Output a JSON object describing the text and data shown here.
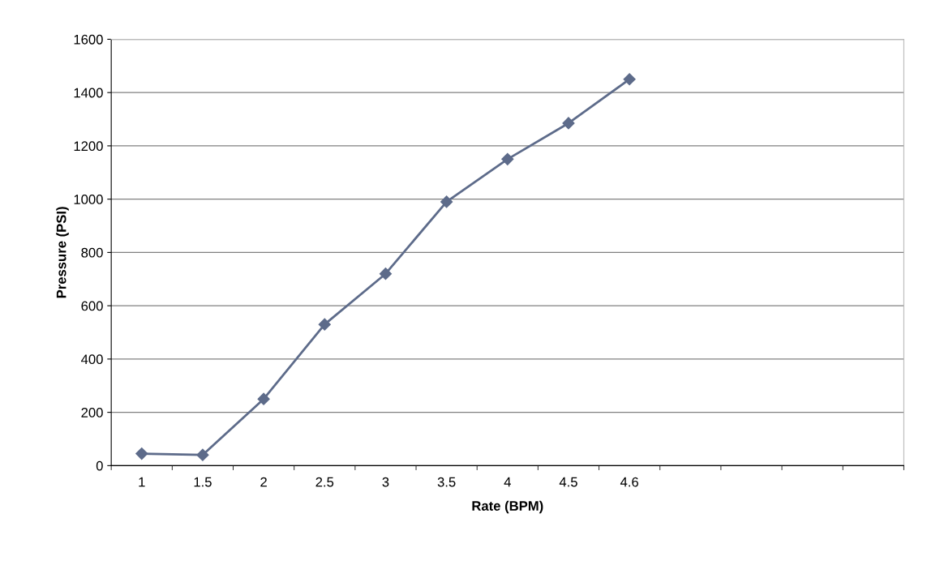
{
  "chart_data": {
    "type": "line",
    "xlabel": "Rate (BPM)",
    "ylabel": "Pressure (PSI)",
    "categories": [
      "1",
      "1.5",
      "2",
      "2.5",
      "3",
      "3.5",
      "4",
      "4.5",
      "4.6",
      null,
      null,
      null,
      null
    ],
    "series": [
      {
        "color": "#5d6b8a",
        "values": [
          45,
          40,
          250,
          530,
          720,
          990,
          1150,
          1285,
          1450,
          null,
          null,
          null,
          null
        ]
      }
    ],
    "ylim": [
      0,
      1600
    ],
    "yticks": [
      0,
      200,
      400,
      600,
      800,
      1000,
      1200,
      1400,
      1600
    ],
    "grid": "y",
    "marker": "diamond",
    "line_style": "solid",
    "legend": false
  }
}
